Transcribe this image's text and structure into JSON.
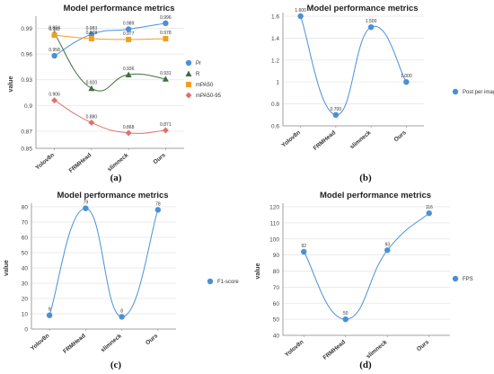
{
  "colors": {
    "blue": "#4a90d9",
    "dark_green": "#3f6f3f",
    "orange": "#f0a020",
    "red": "#e07070"
  },
  "chart_data": [
    {
      "id": "a",
      "type": "line",
      "title": "Model performance metrics",
      "ylabel": "value",
      "xlabel": "",
      "categories": [
        "Yolov8n",
        "FRMHead",
        "slimneck",
        "Ours"
      ],
      "ylim": [
        0.85,
        1.0
      ],
      "yticks": [
        0.85,
        0.87,
        0.9,
        0.93,
        0.96,
        0.99
      ],
      "legend_position": "right",
      "grid": true,
      "series": [
        {
          "name": "Pr",
          "values": [
            0.958,
            0.983,
            0.989,
            0.996
          ],
          "labels": [
            "0.958",
            "0.983",
            "0.989",
            "0.996"
          ],
          "color": "#4a90d9",
          "marker": "circle"
        },
        {
          "name": "R",
          "values": [
            0.984,
            0.92,
            0.936,
            0.931
          ],
          "labels": [
            "0.984",
            "0.920",
            "0.936",
            "0.931"
          ],
          "color": "#3f6f3f",
          "marker": "triangle"
        },
        {
          "name": "mPA50",
          "values": [
            0.982,
            0.978,
            0.977,
            0.978
          ],
          "labels": [
            "0.982",
            "0.978",
            "0.977",
            "0.978"
          ],
          "color": "#f0a020",
          "marker": "square"
        },
        {
          "name": "mPA50-95",
          "values": [
            0.906,
            0.88,
            0.868,
            0.871
          ],
          "labels": [
            "0.906",
            "0.880",
            "0.868",
            "0.871"
          ],
          "color": "#e07070",
          "marker": "diamond"
        }
      ]
    },
    {
      "id": "b",
      "type": "line",
      "title": "Model performance metrics",
      "ylabel": "",
      "xlabel": "",
      "categories": [
        "Yolov8n",
        "FRMHead",
        "slimneck",
        "Ours"
      ],
      "ylim": [
        0.6,
        1.6
      ],
      "yticks": [
        0.6,
        0.8,
        1.0,
        1.2,
        1.4,
        1.6
      ],
      "ytick_labels": [
        "0.6",
        "0.8",
        "1",
        "1.2",
        "1.4",
        "1.6"
      ],
      "legend_position": "right",
      "grid": true,
      "series": [
        {
          "name": "Post per image",
          "values": [
            1.6,
            0.7,
            1.5,
            1.0
          ],
          "labels": [
            "1.600",
            "0.700",
            "1.500",
            "1.000"
          ],
          "color": "#4a90d9",
          "marker": "circle"
        }
      ]
    },
    {
      "id": "c",
      "type": "line",
      "title": "Model performance metrics",
      "ylabel": "value",
      "xlabel": "",
      "categories": [
        "Yolov8n",
        "FRMHead",
        "slimneck",
        "Ours"
      ],
      "ylim": [
        0,
        80
      ],
      "yticks": [
        0,
        10,
        20,
        30,
        40,
        50,
        60,
        70,
        80
      ],
      "legend_position": "right",
      "grid": true,
      "series": [
        {
          "name": "F1-score",
          "values": [
            9,
            79,
            8,
            78
          ],
          "labels": [
            "9",
            "79",
            "8",
            "78"
          ],
          "color": "#4a90d9",
          "marker": "circle"
        }
      ]
    },
    {
      "id": "d",
      "type": "line",
      "title": "Model performance metrics",
      "ylabel": "value",
      "xlabel": "",
      "categories": [
        "Yolov8n",
        "FRMHead",
        "slimneck",
        "Ours"
      ],
      "ylim": [
        40,
        120
      ],
      "yticks": [
        40,
        50,
        60,
        70,
        80,
        90,
        100,
        110,
        120
      ],
      "legend_position": "right",
      "grid": true,
      "series": [
        {
          "name": "FPS",
          "values": [
            92,
            50,
            93,
            116
          ],
          "labels": [
            "92",
            "50",
            "93",
            "116"
          ],
          "color": "#4a90d9",
          "marker": "circle"
        }
      ]
    }
  ],
  "captions": [
    "(a)",
    "(b)",
    "(c)",
    "(d)"
  ]
}
